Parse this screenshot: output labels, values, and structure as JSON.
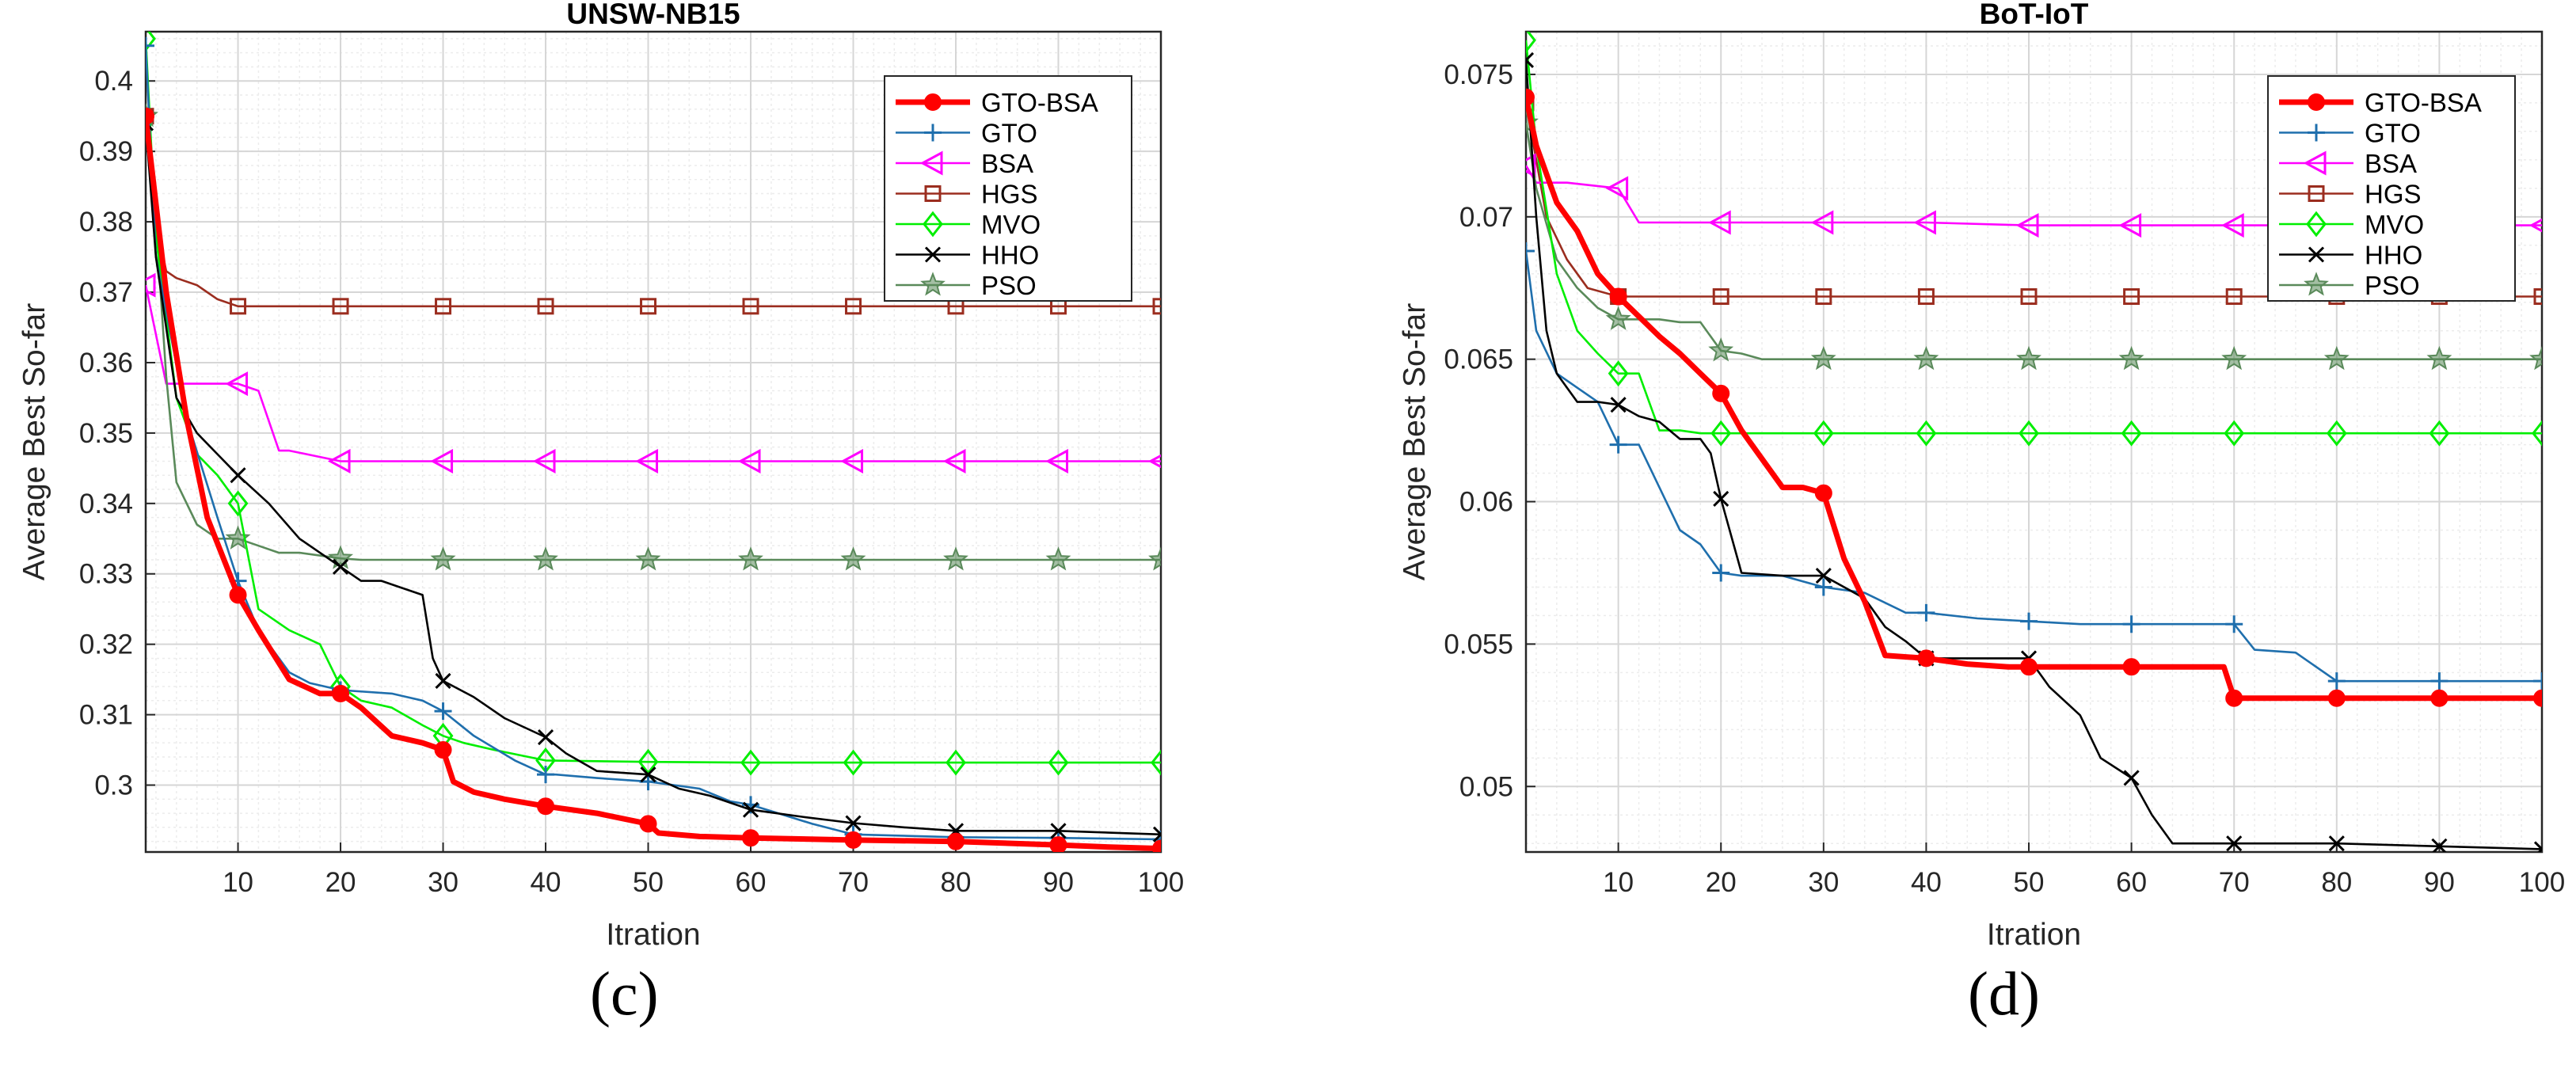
{
  "chart_data": [
    {
      "type": "line",
      "title": "UNSW-NB15",
      "xlabel": "Itration",
      "ylabel": "Average Best So-far",
      "xlim": [
        1,
        100
      ],
      "ylim": [
        0.2905,
        0.407
      ],
      "xticks": [
        10,
        20,
        30,
        40,
        50,
        60,
        70,
        80,
        90,
        100
      ],
      "yticks": [
        0.3,
        0.31,
        0.32,
        0.33,
        0.34,
        0.35,
        0.36,
        0.37,
        0.38,
        0.39,
        0.4
      ],
      "ytick_labels": [
        "0.3",
        "0.31",
        "0.32",
        "0.33",
        "0.34",
        "0.35",
        "0.36",
        "0.37",
        "0.38",
        "0.39",
        "0.4"
      ],
      "grid": true,
      "legend_position": "top-right",
      "panel_label": "(c)",
      "series": [
        {
          "name": "GTO-BSA",
          "color": "#ff0000",
          "marker": "circle",
          "style": "thick",
          "x": [
            1,
            3,
            5,
            7,
            10,
            12,
            15,
            18,
            20,
            22,
            25,
            28,
            30,
            31,
            33,
            36,
            40,
            45,
            50,
            51,
            55,
            60,
            70,
            80,
            90,
            95,
            100
          ],
          "y": [
            0.395,
            0.37,
            0.352,
            0.338,
            0.327,
            0.322,
            0.315,
            0.313,
            0.313,
            0.311,
            0.307,
            0.306,
            0.305,
            0.3005,
            0.299,
            0.298,
            0.297,
            0.296,
            0.2945,
            0.2932,
            0.2927,
            0.2925,
            0.2922,
            0.292,
            0.2915,
            0.2912,
            0.291
          ]
        },
        {
          "name": "GTO",
          "color": "#1f6fad",
          "marker": "plus",
          "x": [
            1,
            2,
            5,
            8,
            10,
            12,
            15,
            17,
            20,
            25,
            28,
            30,
            33,
            37,
            40,
            41,
            45,
            50,
            55,
            58,
            60,
            62,
            66,
            70,
            80,
            90,
            100
          ],
          "y": [
            0.405,
            0.375,
            0.352,
            0.338,
            0.329,
            0.322,
            0.316,
            0.3145,
            0.3135,
            0.313,
            0.312,
            0.3105,
            0.307,
            0.3035,
            0.3015,
            0.3015,
            0.301,
            0.3005,
            0.2995,
            0.2977,
            0.2972,
            0.2963,
            0.2945,
            0.293,
            0.2926,
            0.2925,
            0.2923
          ]
        },
        {
          "name": "BSA",
          "color": "#ff00ff",
          "marker": "triangle-left",
          "x": [
            1,
            2,
            3,
            5,
            10,
            12,
            14,
            15,
            20,
            30,
            40,
            50,
            60,
            70,
            80,
            90,
            100
          ],
          "y": [
            0.371,
            0.364,
            0.357,
            0.357,
            0.357,
            0.356,
            0.3475,
            0.3475,
            0.346,
            0.346,
            0.346,
            0.346,
            0.346,
            0.346,
            0.346,
            0.346,
            0.346
          ]
        },
        {
          "name": "HGS",
          "color": "#9b2d1f",
          "marker": "square",
          "x": [
            1,
            2,
            3,
            4,
            6,
            8,
            10,
            20,
            30,
            40,
            50,
            60,
            70,
            80,
            90,
            100
          ],
          "y": [
            0.395,
            0.38,
            0.373,
            0.372,
            0.371,
            0.369,
            0.368,
            0.368,
            0.368,
            0.368,
            0.368,
            0.368,
            0.368,
            0.368,
            0.368,
            0.368
          ]
        },
        {
          "name": "MVO",
          "color": "#00ee00",
          "marker": "diamond",
          "x": [
            1,
            2,
            4,
            6,
            8,
            10,
            12,
            15,
            18,
            20,
            22,
            25,
            28,
            30,
            32,
            35,
            40,
            50,
            60,
            70,
            80,
            90,
            100
          ],
          "y": [
            0.406,
            0.378,
            0.355,
            0.347,
            0.344,
            0.34,
            0.325,
            0.322,
            0.32,
            0.314,
            0.312,
            0.311,
            0.3085,
            0.307,
            0.306,
            0.305,
            0.3035,
            0.3033,
            0.3032,
            0.3032,
            0.3032,
            0.3032,
            0.3032
          ]
        },
        {
          "name": "HHO",
          "color": "#000000",
          "marker": "x",
          "x": [
            1,
            2,
            4,
            6,
            8,
            10,
            13,
            16,
            18,
            20,
            22,
            24,
            28,
            29,
            30,
            33,
            36,
            40,
            42,
            45,
            48,
            50,
            53,
            56,
            60,
            65,
            70,
            75,
            80,
            90,
            100
          ],
          "y": [
            0.394,
            0.375,
            0.355,
            0.35,
            0.347,
            0.344,
            0.34,
            0.335,
            0.333,
            0.331,
            0.329,
            0.329,
            0.327,
            0.318,
            0.3148,
            0.3125,
            0.3095,
            0.3068,
            0.3045,
            0.302,
            0.3017,
            0.3015,
            0.2995,
            0.2985,
            0.2965,
            0.2955,
            0.2946,
            0.294,
            0.2935,
            0.2935,
            0.293
          ]
        },
        {
          "name": "PSO",
          "color": "#5a8a5a",
          "marker": "star",
          "x": [
            1,
            2,
            3,
            4,
            6,
            8,
            10,
            12,
            14,
            16,
            20,
            22,
            24,
            30,
            40,
            50,
            60,
            70,
            80,
            90,
            100
          ],
          "y": [
            0.395,
            0.38,
            0.358,
            0.343,
            0.337,
            0.335,
            0.335,
            0.334,
            0.333,
            0.333,
            0.3322,
            0.332,
            0.332,
            0.332,
            0.332,
            0.332,
            0.332,
            0.332,
            0.332,
            0.332,
            0.332
          ]
        }
      ]
    },
    {
      "type": "line",
      "title": "BoT-IoT",
      "xlabel": "Itration",
      "ylabel": "Average Best So-far",
      "xlim": [
        1,
        100
      ],
      "ylim": [
        0.0477,
        0.0765
      ],
      "xticks": [
        10,
        20,
        30,
        40,
        50,
        60,
        70,
        80,
        90,
        100
      ],
      "yticks": [
        0.05,
        0.055,
        0.06,
        0.065,
        0.07,
        0.075
      ],
      "ytick_labels": [
        "0.05",
        "0.055",
        "0.06",
        "0.065",
        "0.07",
        "0.075"
      ],
      "grid": true,
      "legend_position": "top-right",
      "panel_label": "(d)",
      "series": [
        {
          "name": "GTO-BSA",
          "color": "#ff0000",
          "marker": "circle",
          "style": "thick",
          "x": [
            1,
            2,
            4,
            6,
            8,
            10,
            12,
            14,
            16,
            18,
            20,
            22,
            24,
            26,
            28,
            30,
            32,
            34,
            36,
            40,
            44,
            48,
            50,
            55,
            60,
            65,
            69,
            70,
            80,
            90,
            100
          ],
          "y": [
            0.0742,
            0.0725,
            0.0705,
            0.0695,
            0.068,
            0.0672,
            0.0665,
            0.0658,
            0.0652,
            0.0645,
            0.0638,
            0.0625,
            0.0615,
            0.0605,
            0.0605,
            0.0603,
            0.058,
            0.0565,
            0.0546,
            0.0545,
            0.0543,
            0.0542,
            0.0542,
            0.0542,
            0.0542,
            0.0542,
            0.0542,
            0.0531,
            0.0531,
            0.0531,
            0.0531
          ]
        },
        {
          "name": "GTO",
          "color": "#1f6fad",
          "marker": "plus",
          "x": [
            1,
            2,
            4,
            6,
            8,
            10,
            12,
            14,
            16,
            18,
            20,
            22,
            26,
            30,
            34,
            38,
            40,
            45,
            50,
            55,
            60,
            65,
            70,
            72,
            76,
            80,
            90,
            100
          ],
          "y": [
            0.0688,
            0.066,
            0.0645,
            0.064,
            0.0635,
            0.062,
            0.062,
            0.0605,
            0.059,
            0.0585,
            0.0575,
            0.0574,
            0.0574,
            0.057,
            0.0568,
            0.0561,
            0.0561,
            0.0559,
            0.0558,
            0.0557,
            0.0557,
            0.0557,
            0.0557,
            0.0548,
            0.0547,
            0.0537,
            0.0537,
            0.0537
          ]
        },
        {
          "name": "BSA",
          "color": "#ff00ff",
          "marker": "triangle-left",
          "x": [
            1,
            2,
            5,
            10,
            12,
            20,
            30,
            40,
            50,
            60,
            70,
            80,
            90,
            100
          ],
          "y": [
            0.0718,
            0.0712,
            0.0712,
            0.071,
            0.0698,
            0.0698,
            0.0698,
            0.0698,
            0.0697,
            0.0697,
            0.0697,
            0.0697,
            0.0697,
            0.0697
          ]
        },
        {
          "name": "HGS",
          "color": "#9b2d1f",
          "marker": "square",
          "x": [
            1,
            3,
            5,
            7,
            10,
            20,
            30,
            40,
            50,
            60,
            70,
            80,
            90,
            100
          ],
          "y": [
            0.074,
            0.07,
            0.0685,
            0.0675,
            0.0672,
            0.0672,
            0.0672,
            0.0672,
            0.0672,
            0.0672,
            0.0672,
            0.0672,
            0.0672,
            0.0672
          ]
        },
        {
          "name": "MVO",
          "color": "#00ee00",
          "marker": "diamond",
          "x": [
            1,
            2,
            4,
            6,
            8,
            10,
            12,
            14,
            16,
            18,
            20,
            30,
            40,
            50,
            60,
            70,
            80,
            90,
            100
          ],
          "y": [
            0.0762,
            0.0725,
            0.068,
            0.066,
            0.0652,
            0.0645,
            0.0645,
            0.0625,
            0.0625,
            0.0624,
            0.0624,
            0.0624,
            0.0624,
            0.0624,
            0.0624,
            0.0624,
            0.0624,
            0.0624,
            0.0624
          ]
        },
        {
          "name": "HHO",
          "color": "#000000",
          "marker": "x",
          "x": [
            1,
            2,
            3,
            4,
            6,
            8,
            10,
            12,
            14,
            16,
            18,
            19,
            20,
            22,
            26,
            30,
            34,
            36,
            38,
            40,
            45,
            50,
            52,
            55,
            57,
            60,
            62,
            64,
            70,
            80,
            90,
            100
          ],
          "y": [
            0.0755,
            0.07,
            0.066,
            0.0645,
            0.0635,
            0.0635,
            0.0634,
            0.063,
            0.0628,
            0.0622,
            0.0622,
            0.0617,
            0.0601,
            0.0575,
            0.0574,
            0.0574,
            0.0566,
            0.0556,
            0.0551,
            0.0545,
            0.0545,
            0.0545,
            0.0535,
            0.0525,
            0.051,
            0.0503,
            0.049,
            0.048,
            0.048,
            0.048,
            0.0479,
            0.0478
          ]
        },
        {
          "name": "PSO",
          "color": "#5a8a5a",
          "marker": "star",
          "x": [
            1,
            2,
            4,
            6,
            8,
            10,
            14,
            16,
            18,
            20,
            22,
            24,
            30,
            40,
            50,
            60,
            70,
            80,
            90,
            100
          ],
          "y": [
            0.0733,
            0.071,
            0.0685,
            0.0675,
            0.0668,
            0.0664,
            0.0664,
            0.0663,
            0.0663,
            0.0653,
            0.0652,
            0.065,
            0.065,
            0.065,
            0.065,
            0.065,
            0.065,
            0.065,
            0.065,
            0.065
          ]
        }
      ]
    }
  ]
}
